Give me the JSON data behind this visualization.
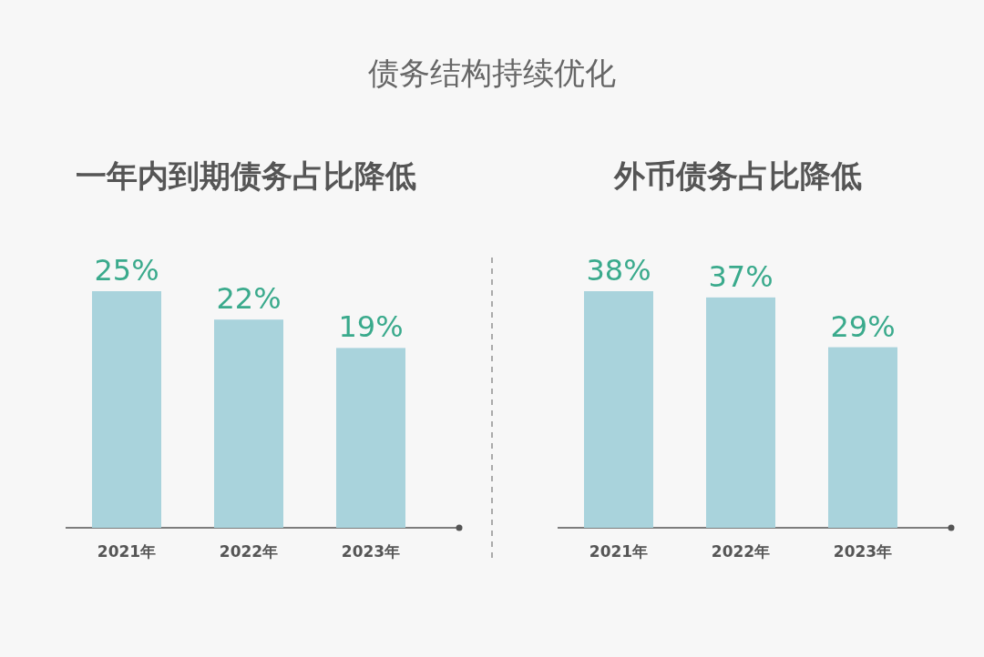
{
  "chart_data": [
    {
      "type": "other",
      "title": "债务结构持续优化"
    },
    {
      "type": "bar",
      "title": "一年内到期债务占比降低",
      "categories": [
        "2021年",
        "2022年",
        "2023年"
      ],
      "values": [
        25,
        22,
        19
      ],
      "value_labels": [
        "25%",
        "22%",
        "19%"
      ],
      "color": "#a9d3dc"
    },
    {
      "type": "bar",
      "title": "外币债务占比降低",
      "categories": [
        "2021年",
        "2022年",
        "2023年"
      ],
      "values": [
        38,
        37,
        29
      ],
      "value_labels": [
        "38%",
        "37%",
        "29%"
      ],
      "color": "#a9d3dc"
    }
  ]
}
